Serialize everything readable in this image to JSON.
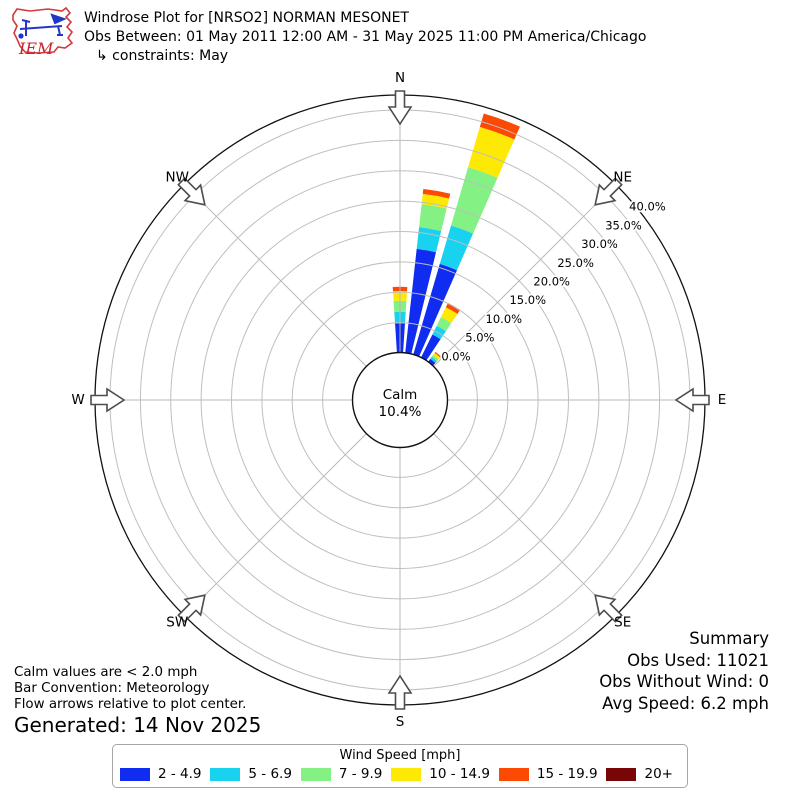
{
  "header": {
    "logo_text": "IEM",
    "title": "Windrose Plot for [NRSO2] NORMAN MESONET",
    "subtitle": "Obs Between: 01 May 2011 12:00 AM - 31 May 2025 11:00 PM America/Chicago",
    "constraints": "↳ constraints: May"
  },
  "chart_data": {
    "type": "windrose-stacked-polar-bar",
    "title": "Windrose Plot for [NRSO2] NORMAN MESONET",
    "radial_unit": "%",
    "radial_ticks": [
      "0.0%",
      "5.0%",
      "10.0%",
      "15.0%",
      "20.0%",
      "25.0%",
      "30.0%",
      "35.0%",
      "40.0%"
    ],
    "radial_tick_pcts": [
      0,
      5,
      10,
      15,
      20,
      25,
      30,
      35,
      40
    ],
    "radial_max_pct": 40,
    "grid": true,
    "compass": [
      {
        "label": "N",
        "deg": 0
      },
      {
        "label": "NE",
        "deg": 45
      },
      {
        "label": "E",
        "deg": 90
      },
      {
        "label": "SE",
        "deg": 135
      },
      {
        "label": "S",
        "deg": 180
      },
      {
        "label": "SW",
        "deg": 225
      },
      {
        "label": "W",
        "deg": 270
      },
      {
        "label": "NW",
        "deg": 315
      }
    ],
    "calm_label": "Calm",
    "calm_value": "10.4%",
    "bar_width_deg": 7.4,
    "speed_bins": [
      {
        "label": "2 - 4.9",
        "color": "#0f2cf0"
      },
      {
        "label": "5 - 6.9",
        "color": "#19d2f0"
      },
      {
        "label": "7 - 9.9",
        "color": "#83f183"
      },
      {
        "label": "10 - 14.9",
        "color": "#fde903"
      },
      {
        "label": "15 - 19.9",
        "color": "#fc4a03"
      },
      {
        "label": "20+",
        "color": "#790607"
      }
    ],
    "bars": [
      {
        "direction_deg": 0,
        "segments_pct": [
          4.9,
          1.9,
          1.8,
          1.6,
          0.7,
          0
        ],
        "total_pct": 10.9
      },
      {
        "direction_deg": 10,
        "segments_pct": [
          17.3,
          3.6,
          3.8,
          1.7,
          0.8,
          0
        ],
        "total_pct": 27.2
      },
      {
        "direction_deg": 20,
        "segments_pct": [
          15.6,
          6.6,
          10.0,
          6.9,
          2.3,
          0
        ],
        "total_pct": 41.4
      },
      {
        "direction_deg": 30,
        "segments_pct": [
          4.3,
          1.6,
          1.6,
          1.8,
          0.8,
          0
        ],
        "total_pct": 10.1
      },
      {
        "direction_deg": 40,
        "segments_pct": [
          0.7,
          0.4,
          0.4,
          0.4,
          0.2,
          0
        ],
        "total_pct": 2.1
      }
    ]
  },
  "summary": {
    "title": "Summary",
    "obs_used": "Obs Used: 11021",
    "obs_without_wind": "Obs Without Wind: 0",
    "avg_speed": "Avg Speed: 6.2 mph"
  },
  "footnotes": {
    "calm_note": "Calm values are < 2.0 mph",
    "convention_note": "Bar Convention: Meteorology",
    "arrows_note": "Flow arrows relative to plot center.",
    "generated": "Generated: 14 Nov 2025"
  },
  "legend": {
    "title": "Wind Speed [mph]"
  }
}
